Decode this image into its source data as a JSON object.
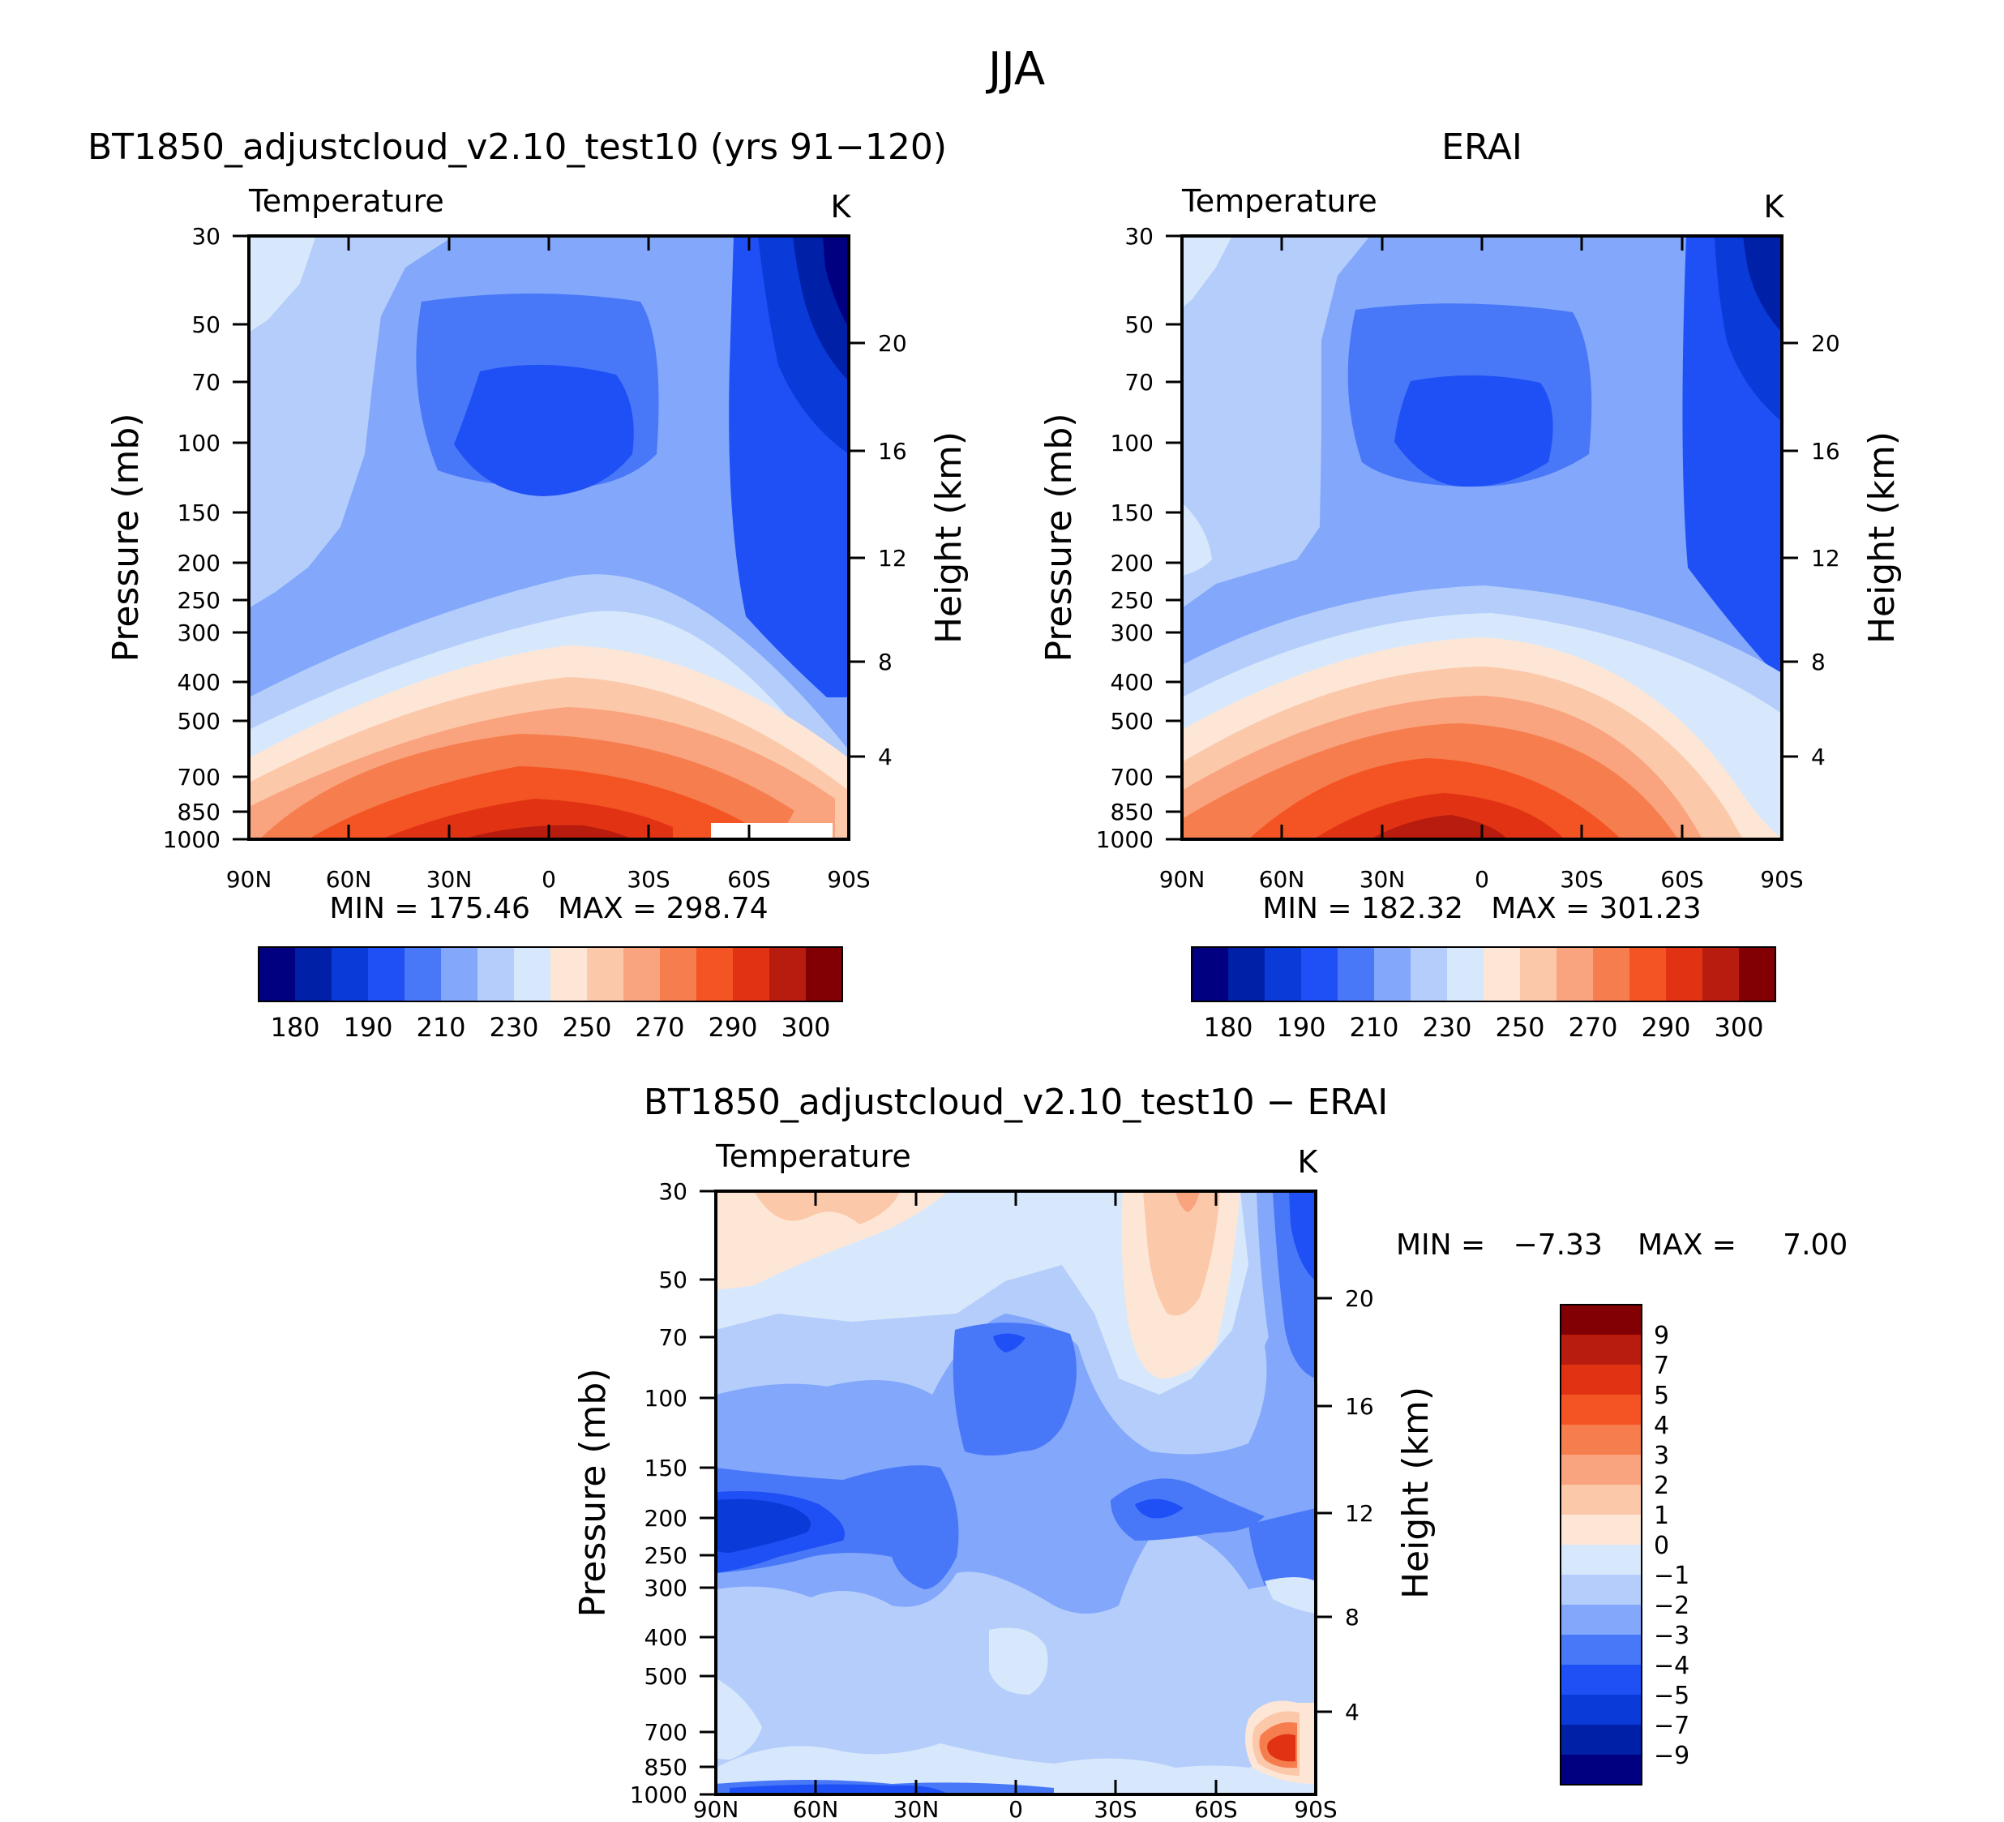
{
  "figure_title": "JJA",
  "chart_data": [
    {
      "type": "contour",
      "title": "BT1850_adjustcloud_v2.10_test10 (yrs 91−120)",
      "left_label": "Temperature",
      "units": "K",
      "ylabel": "Pressure (mb)",
      "y2label": "Height (km)",
      "x_ticks": [
        "90N",
        "60N",
        "30N",
        "0",
        "30S",
        "60S",
        "90S"
      ],
      "y_ticks": [
        "30",
        "50",
        "70",
        "100",
        "150",
        "200",
        "250",
        "300",
        "400",
        "500",
        "700",
        "850",
        "1000"
      ],
      "y2_ticks": [
        "20",
        "16",
        "12",
        "8",
        "4"
      ],
      "stats": "MIN = 175.46   MAX = 298.74",
      "min": 175.46,
      "max": 298.74,
      "colorbar_labels": [
        "180",
        "190",
        "210",
        "230",
        "250",
        "270",
        "290",
        "300"
      ]
    },
    {
      "type": "contour",
      "title": "ERAI",
      "left_label": "Temperature",
      "units": "K",
      "ylabel": "Pressure (mb)",
      "y2label": "Height (km)",
      "x_ticks": [
        "90N",
        "60N",
        "30N",
        "0",
        "30S",
        "60S",
        "90S"
      ],
      "y_ticks": [
        "30",
        "50",
        "70",
        "100",
        "150",
        "200",
        "250",
        "300",
        "400",
        "500",
        "700",
        "850",
        "1000"
      ],
      "y2_ticks": [
        "20",
        "16",
        "12",
        "8",
        "4"
      ],
      "stats": "MIN = 182.32   MAX = 301.23",
      "min": 182.32,
      "max": 301.23,
      "colorbar_labels": [
        "180",
        "190",
        "210",
        "230",
        "250",
        "270",
        "290",
        "300"
      ]
    },
    {
      "type": "contour",
      "title": "BT1850_adjustcloud_v2.10_test10 − ERAI",
      "left_label": "Temperature",
      "units": "K",
      "ylabel": "Pressure (mb)",
      "y2label": "Height (km)",
      "x_ticks": [
        "90N",
        "60N",
        "30N",
        "0",
        "30S",
        "60S",
        "90S"
      ],
      "y_ticks": [
        "30",
        "50",
        "70",
        "100",
        "150",
        "200",
        "250",
        "300",
        "400",
        "500",
        "700",
        "850",
        "1000"
      ],
      "y2_ticks": [
        "20",
        "16",
        "12",
        "8",
        "4"
      ],
      "stats_min": "MIN =   −7.33",
      "stats_max": "MAX =     7.00",
      "min": -7.33,
      "max": 7.0,
      "colorbar_labels": [
        "9",
        "7",
        "5",
        "4",
        "3",
        "2",
        "1",
        "0",
        "−1",
        "−2",
        "−3",
        "−4",
        "−5",
        "−7",
        "−9"
      ]
    }
  ],
  "colors": {
    "temp_scale": [
      "#000080",
      "#0020a8",
      "#0a3ad8",
      "#1e50f5",
      "#4878f8",
      "#82a7fb",
      "#b4cdfb",
      "#d8e8fc",
      "#fde6d6",
      "#fcc8aa",
      "#f9a47e",
      "#f67d4e",
      "#f45423",
      "#e13313",
      "#b81c0e",
      "#820004"
    ],
    "diff_scale": [
      "#820004",
      "#b81c0e",
      "#e13313",
      "#f45423",
      "#f67d4e",
      "#f9a47e",
      "#fcc8aa",
      "#fde6d6",
      "#d8e8fc",
      "#b4cdfb",
      "#82a7fb",
      "#4878f8",
      "#1e50f5",
      "#0a3ad8",
      "#0020a8",
      "#000080"
    ]
  }
}
